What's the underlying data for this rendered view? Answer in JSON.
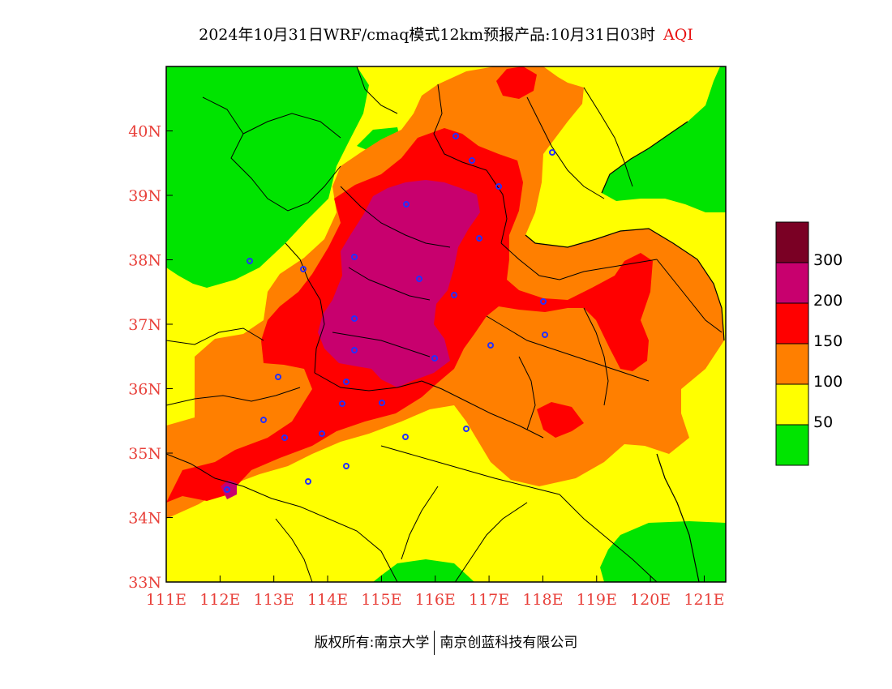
{
  "title": {
    "text": "2024年10月31日WRF/cmaq模式12km预报产品:10月31日03时",
    "product": "AQI"
  },
  "axes": {
    "lat_labels": [
      "40N",
      "39N",
      "38N",
      "37N",
      "36N",
      "35N",
      "34N",
      "33N"
    ],
    "lon_labels": [
      "111E",
      "112E",
      "113E",
      "114E",
      "115E",
      "116E",
      "117E",
      "118E",
      "119E",
      "120E",
      "121E"
    ],
    "lat_range": [
      33,
      41
    ],
    "lon_range": [
      111,
      121.4
    ]
  },
  "legend": {
    "colors": [
      "#7a0024",
      "#c8006e",
      "#ff0000",
      "#ff7f00",
      "#ffff00",
      "#00e400"
    ],
    "labels": [
      "300",
      "200",
      "150",
      "100",
      "50"
    ]
  },
  "aqi_colors": {
    "good": "#00e400",
    "moderate": "#ffff00",
    "light": "#ff7f00",
    "medium": "#ff0000",
    "heavy": "#c8006e",
    "severe": "#7a0024"
  },
  "footer": {
    "left": "版权所有:南京大学",
    "right": "南京创蓝科技有限公司"
  }
}
